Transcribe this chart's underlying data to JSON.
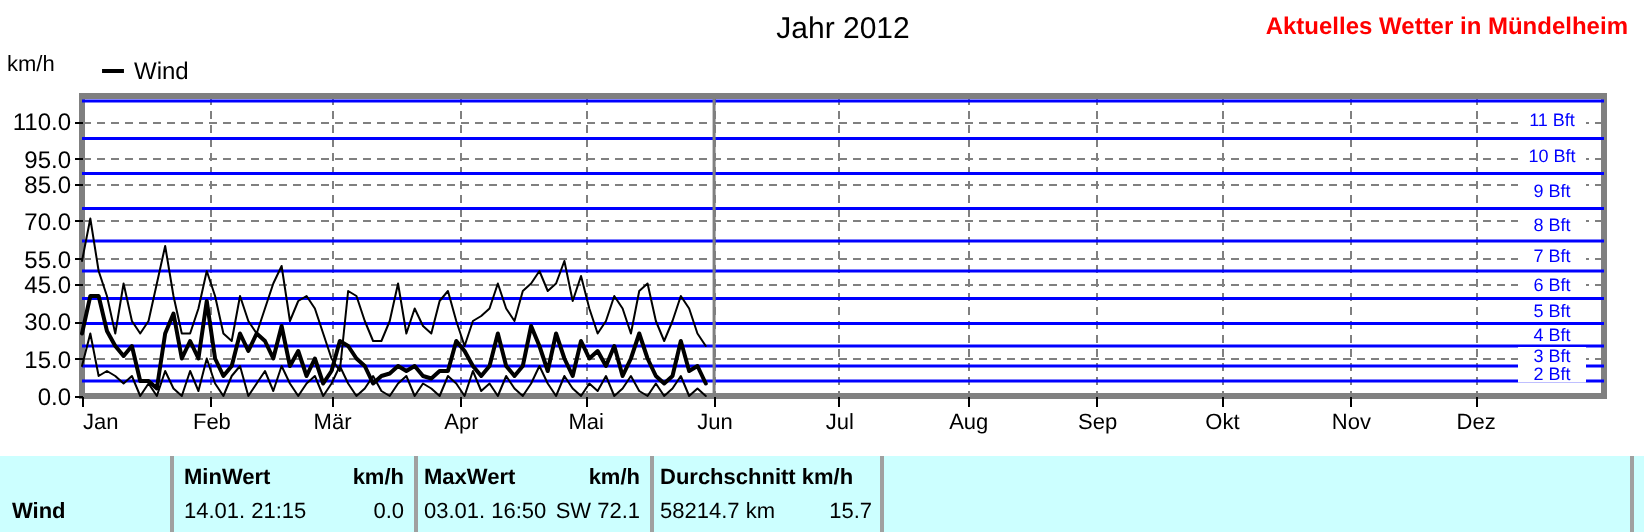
{
  "chart_data": {
    "type": "line",
    "title": "Jahr 2012",
    "ylabel": "km/h",
    "annotations": [
      "Aktuelles Wetter in Mündelheim",
      "Wind",
      "MinWert",
      "km/h",
      "14.01.  21:15",
      "0.0",
      "MaxWert",
      "km/h",
      "03.01.  16:50",
      "SW 72.1",
      "Durchschnitt km/h",
      "58214.7 km",
      "15.7"
    ],
    "x": [
      "2012-01-01",
      "2012-01-03",
      "2012-01-05",
      "2012-01-07",
      "2012-01-09",
      "2012-01-11",
      "2012-01-13",
      "2012-01-15",
      "2012-01-17",
      "2012-01-19",
      "2012-01-21",
      "2012-01-23",
      "2012-01-25",
      "2012-01-27",
      "2012-01-29",
      "2012-01-31",
      "2012-02-02",
      "2012-02-04",
      "2012-02-06",
      "2012-02-08",
      "2012-02-10",
      "2012-02-12",
      "2012-02-14",
      "2012-02-16",
      "2012-02-18",
      "2012-02-20",
      "2012-02-22",
      "2012-02-24",
      "2012-02-26",
      "2012-02-28",
      "2012-03-01",
      "2012-03-03",
      "2012-03-05",
      "2012-03-07",
      "2012-03-09",
      "2012-03-11",
      "2012-03-13",
      "2012-03-15",
      "2012-03-17",
      "2012-03-19",
      "2012-03-21",
      "2012-03-23",
      "2012-03-25",
      "2012-03-27",
      "2012-03-29",
      "2012-03-31",
      "2012-04-02",
      "2012-04-04",
      "2012-04-06",
      "2012-04-08",
      "2012-04-10",
      "2012-04-12",
      "2012-04-14",
      "2012-04-16",
      "2012-04-18",
      "2012-04-20",
      "2012-04-22",
      "2012-04-24",
      "2012-04-26",
      "2012-04-28",
      "2012-04-30",
      "2012-05-02",
      "2012-05-04",
      "2012-05-06",
      "2012-05-08",
      "2012-05-10",
      "2012-05-12",
      "2012-05-14",
      "2012-05-16",
      "2012-05-18",
      "2012-05-20",
      "2012-05-22",
      "2012-05-24",
      "2012-05-26",
      "2012-05-28",
      "2012-05-30"
    ],
    "series": [
      {
        "color": "#000000",
        "values": [
          54,
          71,
          50,
          40,
          25,
          45,
          30,
          25,
          30,
          45,
          60,
          40,
          25,
          25,
          35,
          50,
          40,
          25,
          22,
          40,
          30,
          25,
          35,
          45,
          52,
          30,
          38,
          40,
          35,
          25,
          15,
          10,
          42,
          40,
          30,
          22,
          22,
          30,
          45,
          25,
          35,
          28,
          25,
          38,
          42,
          30,
          20,
          30,
          32,
          35,
          45,
          35,
          30,
          42,
          45,
          50,
          42,
          45,
          54,
          38,
          48,
          35,
          25,
          30,
          40,
          35,
          25,
          42,
          45,
          30,
          22,
          30,
          40,
          35,
          25,
          20
        ]
      },
      {
        "name": "Wind",
        "color": "#000000",
        "values": [
          25,
          40,
          40,
          26,
          20,
          16,
          20,
          6,
          6,
          3,
          25,
          33,
          15,
          22,
          15,
          38,
          15,
          8,
          12,
          25,
          18,
          25,
          22,
          15,
          28,
          12,
          18,
          8,
          15,
          5,
          10,
          22,
          20,
          15,
          12,
          5,
          8,
          9,
          12,
          10,
          12,
          8,
          7,
          10,
          10,
          22,
          18,
          12,
          8,
          12,
          25,
          12,
          8,
          12,
          28,
          20,
          10,
          25,
          15,
          8,
          22,
          15,
          18,
          12,
          20,
          8,
          15,
          25,
          15,
          8,
          5,
          8,
          22,
          10,
          12,
          5
        ]
      },
      {
        "color": "#000000",
        "values": [
          12,
          25,
          8,
          10,
          8,
          5,
          8,
          0,
          5,
          0,
          10,
          3,
          0,
          10,
          2,
          15,
          5,
          0,
          8,
          12,
          0,
          5,
          10,
          2,
          12,
          5,
          0,
          5,
          8,
          0,
          5,
          12,
          5,
          0,
          3,
          8,
          2,
          0,
          5,
          8,
          0,
          5,
          3,
          0,
          8,
          5,
          0,
          10,
          2,
          5,
          0,
          8,
          3,
          0,
          5,
          12,
          5,
          0,
          8,
          3,
          0,
          5,
          2,
          8,
          0,
          3,
          8,
          2,
          0,
          5,
          0,
          3,
          8,
          0,
          3,
          0
        ]
      }
    ],
    "xlim": [
      "2012-01-01",
      "2013-01-01"
    ],
    "xticks": [
      {
        "value": "2012-01-01",
        "label": "Jan"
      },
      {
        "value": "2012-02-01",
        "label": "Feb"
      },
      {
        "value": "2012-03-01",
        "label": "Mär"
      },
      {
        "value": "2012-04-01",
        "label": "Apr"
      },
      {
        "value": "2012-05-01",
        "label": "Mai"
      },
      {
        "value": "2012-06-01",
        "label": "Jun"
      },
      {
        "value": "2012-07-01",
        "label": "Jul"
      },
      {
        "value": "2012-08-01",
        "label": "Aug"
      },
      {
        "value": "2012-09-01",
        "label": "Sep"
      },
      {
        "value": "2012-10-01",
        "label": "Okt"
      },
      {
        "value": "2012-11-01",
        "label": "Nov"
      },
      {
        "value": "2012-12-01",
        "label": "Dez"
      }
    ],
    "ylim": [
      0,
      120
    ],
    "yticks": [
      {
        "value": 0,
        "label": "0.0"
      },
      {
        "value": 15,
        "label": "15.0"
      },
      {
        "value": 30,
        "label": "30.0"
      },
      {
        "value": 45,
        "label": "45.0"
      },
      {
        "value": 55,
        "label": "55.0"
      },
      {
        "value": 70,
        "label": "70.0"
      },
      {
        "value": 85,
        "label": "85.0"
      },
      {
        "value": 95,
        "label": "95.0"
      },
      {
        "value": 110,
        "label": "110.0"
      }
    ],
    "ref_lines": [
      {
        "axis": "y",
        "value": 118,
        "label": null,
        "color": "#0000ff"
      },
      {
        "axis": "y",
        "value": 103,
        "label": "11 Bft",
        "color": "#0000ff"
      },
      {
        "axis": "y",
        "value": 89,
        "label": "10 Bft",
        "color": "#0000ff"
      },
      {
        "axis": "y",
        "value": 75,
        "label": "9 Bft",
        "color": "#0000ff"
      },
      {
        "axis": "y",
        "value": 62,
        "label": "8 Bft",
        "color": "#0000ff"
      },
      {
        "axis": "y",
        "value": 50,
        "label": "7 Bft",
        "color": "#0000ff"
      },
      {
        "axis": "y",
        "value": 39,
        "label": "6 Bft",
        "color": "#0000ff"
      },
      {
        "axis": "y",
        "value": 29,
        "label": "5 Bft",
        "color": "#0000ff"
      },
      {
        "axis": "y",
        "value": 20,
        "label": "4 Bft",
        "color": "#0000ff"
      },
      {
        "axis": "y",
        "value": 12,
        "label": "3 Bft",
        "color": "#0000ff"
      },
      {
        "axis": "y",
        "value": 6,
        "label": "2 Bft",
        "color": "#0000ff"
      },
      {
        "axis": "x",
        "value": "2012-06-01",
        "label": null,
        "color": "#808080"
      }
    ],
    "grid": true,
    "legend": "top left",
    "marker": "none",
    "line_style": "solid"
  }
}
